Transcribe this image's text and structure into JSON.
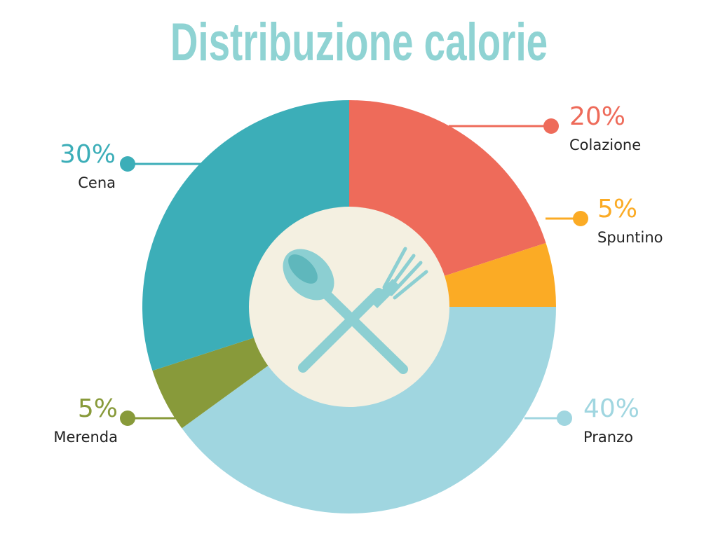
{
  "chart_data": {
    "type": "pie",
    "title": "Distribuzione calorie",
    "categories": [
      "Colazione",
      "Spuntino",
      "Pranzo",
      "Merenda",
      "Cena"
    ],
    "values": [
      20,
      5,
      40,
      5,
      30
    ],
    "value_labels": [
      "20%",
      "5%",
      "40%",
      "5%",
      "30%"
    ],
    "colors": [
      "#ee6b5a",
      "#fbab25",
      "#a0d6e0",
      "#889a3a",
      "#3caeb8"
    ]
  }
}
